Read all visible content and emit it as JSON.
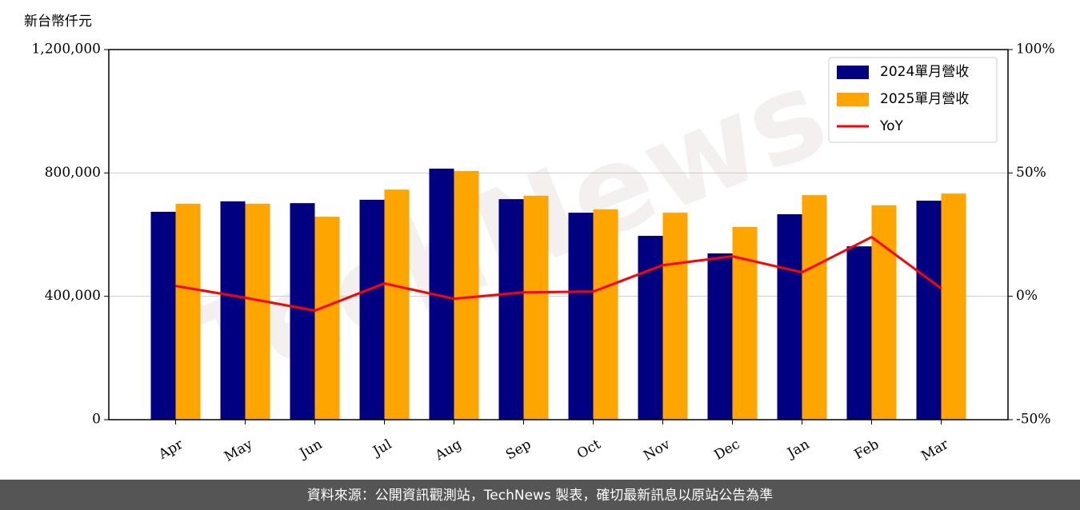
{
  "chart_data": {
    "type": "bar",
    "y_axis_label": "新台幣仟元",
    "categories": [
      "Apr",
      "May",
      "Jun",
      "Jul",
      "Aug",
      "Sep",
      "Oct",
      "Nov",
      "Dec",
      "Jan",
      "Feb",
      "Mar"
    ],
    "series": [
      {
        "name": "2024單月營收",
        "color": "#000080",
        "type": "bar",
        "values": [
          674000,
          708000,
          702000,
          713000,
          814000,
          715000,
          671000,
          596000,
          539000,
          666000,
          562000,
          710000
        ]
      },
      {
        "name": "2025單月營收",
        "color": "#ffa500",
        "type": "bar",
        "values": [
          700000,
          700000,
          658000,
          746000,
          806000,
          726000,
          682000,
          671000,
          625000,
          728000,
          695000,
          733000
        ]
      },
      {
        "name": "YoY",
        "color": "#ff0000",
        "type": "line",
        "axis": "y2",
        "values": [
          4.2,
          -0.6,
          -5.8,
          5.2,
          -1.0,
          1.6,
          1.9,
          12.6,
          16.2,
          9.7,
          24.0,
          3.2
        ]
      }
    ],
    "ylim": [
      0,
      1200000
    ],
    "yticks": [
      0,
      {
        "value": 400000,
        "label": "400,000"
      },
      {
        "value": 800000,
        "label": "800,000"
      },
      {
        "value": 1200000,
        "label": "1,200,000"
      }
    ],
    "y2lim": [
      -50,
      100
    ],
    "y2ticks": [
      {
        "value": -50,
        "label": "-50%"
      },
      {
        "value": 0,
        "label": "0%"
      },
      {
        "value": 50,
        "label": "50%"
      },
      {
        "value": 100,
        "label": "100%"
      }
    ],
    "grid": true,
    "legend": "upper right"
  },
  "watermark": "TechNews",
  "footer": "資料來源：公開資訊觀測站，TechNews 製表，確切最新訊息以原站公告為準"
}
